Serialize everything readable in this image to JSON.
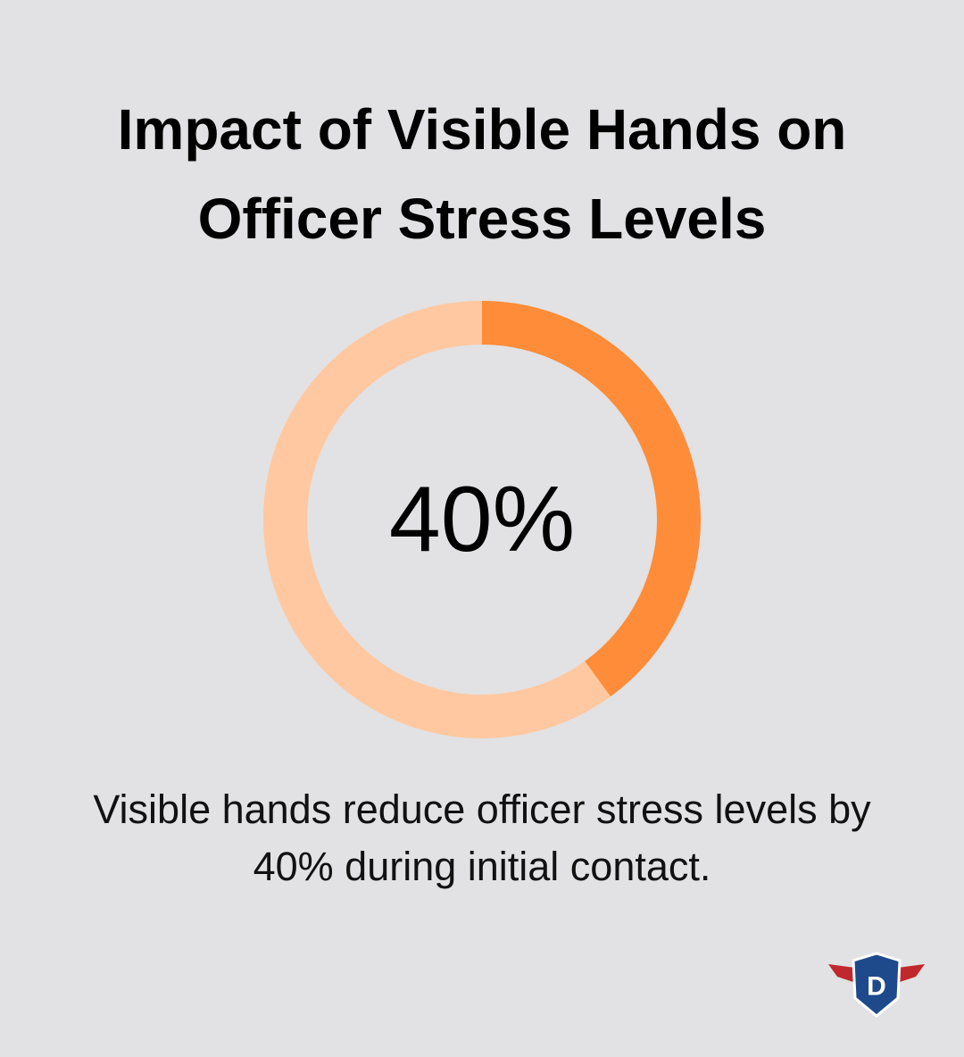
{
  "chart_data": {
    "type": "donut",
    "title": "Impact of Visible Hands on Officer Stress Levels",
    "values": [
      40,
      60
    ],
    "value_labels": [
      "40%",
      null
    ],
    "colors": [
      "#ff8c38",
      "#ffc8a0"
    ],
    "caption": "Visible hands reduce officer stress levels by 40% during initial contact."
  },
  "logo": {
    "text": "D"
  }
}
